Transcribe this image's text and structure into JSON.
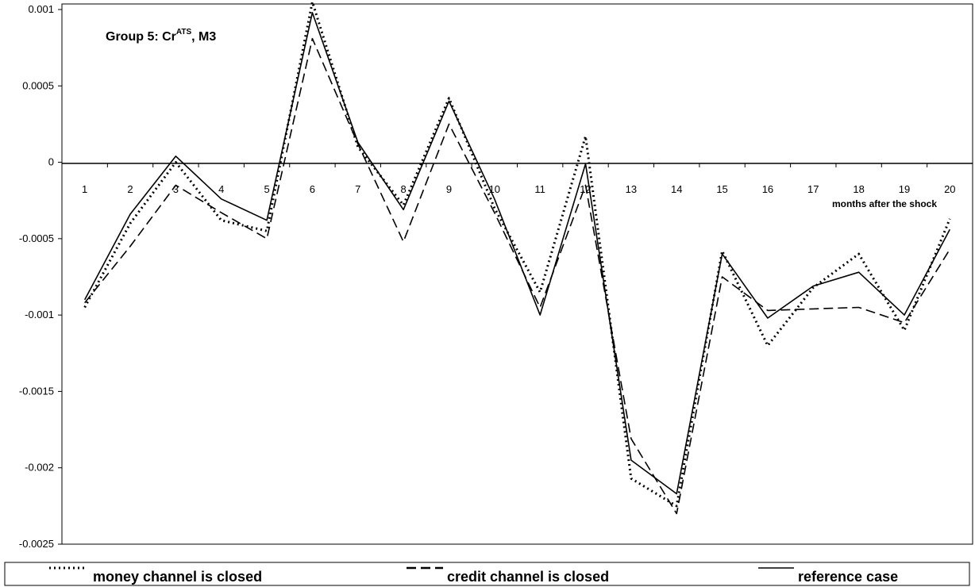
{
  "chart_data": {
    "type": "line",
    "title_main": "Group 5: Cr",
    "title_sup": "ATS",
    "title_tail": ", M3",
    "xlabel": "months after the shock",
    "ylabel": "",
    "x": [
      1,
      2,
      3,
      4,
      5,
      6,
      7,
      8,
      9,
      10,
      11,
      12,
      13,
      14,
      15,
      16,
      17,
      18,
      19,
      20
    ],
    "xticks": [
      "1",
      "2",
      "3",
      "4",
      "5",
      "6",
      "7",
      "8",
      "9",
      "10",
      "11",
      "12",
      "13",
      "14",
      "15",
      "16",
      "17",
      "18",
      "19",
      "20"
    ],
    "yticks": [
      "0.001",
      "0.0005",
      "0",
      "-0.0005",
      "-0.001",
      "-0.0015",
      "-0.002",
      "-0.0025"
    ],
    "ylim": [
      -0.0025,
      0.001
    ],
    "grid": false,
    "legend_position": "bottom",
    "series": [
      {
        "name": "money channel is closed",
        "style": "dotted",
        "values": [
          -0.00095,
          -0.0004,
          0.0,
          -0.00038,
          -0.00045,
          0.00105,
          0.0001,
          -0.00028,
          0.00042,
          -0.0003,
          -0.00085,
          0.00017,
          -0.00207,
          -0.00225,
          -0.00058,
          -0.0012,
          -0.00082,
          -0.0006,
          -0.0011,
          -0.00037
        ]
      },
      {
        "name": "credit channel is closed",
        "style": "dashed",
        "values": [
          -0.00092,
          -0.00055,
          -0.00015,
          -0.00033,
          -0.0005,
          0.00081,
          0.00012,
          -0.00052,
          0.00025,
          -0.00033,
          -0.00095,
          -0.00015,
          -0.00181,
          -0.0023,
          -0.00075,
          -0.00097,
          -0.00096,
          -0.00095,
          -0.00105,
          -0.00057
        ]
      },
      {
        "name": "reference case",
        "style": "solid",
        "values": [
          -0.0009,
          -0.00034,
          4e-05,
          -0.00024,
          -0.00038,
          0.00098,
          0.00013,
          -0.00031,
          0.0004,
          -0.00024,
          -0.001,
          -1e-05,
          -0.00195,
          -0.00217,
          -0.0006,
          -0.00102,
          -0.00081,
          -0.00072,
          -0.001,
          -0.00044
        ]
      }
    ]
  }
}
